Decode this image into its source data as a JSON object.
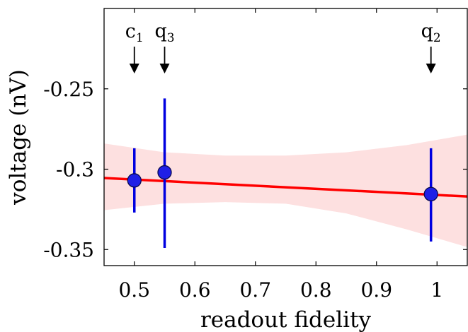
{
  "chart_data": {
    "type": "scatter",
    "xlabel": "readout fidelity",
    "ylabel": "voltage (nV)",
    "xlim": [
      0.45,
      1.05
    ],
    "ylim": [
      -0.36,
      -0.2
    ],
    "x_ticks": [
      0.5,
      0.6,
      0.7,
      0.8,
      0.9,
      1
    ],
    "x_tick_labels": [
      "0.5",
      "0.6",
      "0.7",
      "0.8",
      "0.9",
      "1"
    ],
    "y_ticks": [
      -0.25,
      -0.3,
      -0.35
    ],
    "y_tick_labels": [
      "-0.25",
      "-0.3",
      "-0.35"
    ],
    "grid": false,
    "points": [
      {
        "label": "c",
        "sub": "1",
        "x": 0.5,
        "y": -0.307,
        "err_low": -0.327,
        "err_high": -0.287
      },
      {
        "label": "q",
        "sub": "3",
        "x": 0.55,
        "y": -0.302,
        "err_low": -0.349,
        "err_high": -0.256
      },
      {
        "label": "q",
        "sub": "2",
        "x": 0.99,
        "y": -0.3155,
        "err_low": -0.345,
        "err_high": -0.287
      }
    ],
    "fit_line": {
      "x": [
        0.45,
        1.05
      ],
      "y": [
        -0.3055,
        -0.317
      ]
    },
    "confidence_band": {
      "x": [
        0.45,
        0.55,
        0.65,
        0.75,
        0.85,
        0.95,
        1.05
      ],
      "upper": [
        -0.284,
        -0.2895,
        -0.2915,
        -0.2915,
        -0.2895,
        -0.285,
        -0.2785
      ],
      "lower": [
        -0.3255,
        -0.3215,
        -0.3205,
        -0.3215,
        -0.3275,
        -0.3375,
        -0.3485
      ]
    },
    "colors": {
      "point_fill": "#1f1fe6",
      "point_edge": "#0a0a50",
      "error_bar": "#0000e0",
      "fit_line": "#ff0000",
      "band": "#fde0e0",
      "axes": "#000000",
      "arrow": "#000000"
    }
  }
}
